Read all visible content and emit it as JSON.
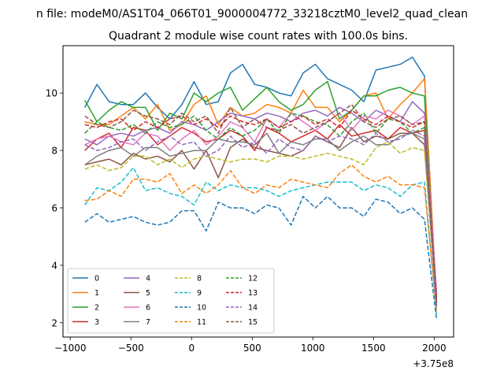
{
  "chart_data": {
    "type": "line",
    "suptitle": "n file: modeM0/AS1T04_066T01_9000004772_33218cztM0_level2_quad_clean",
    "title": "Quadrant 2 module wise count rates with 100.0s bins.",
    "xlabel": "",
    "ylabel": "",
    "x_offset_label": "+3.75e8",
    "xlim": [
      -1060,
      2160
    ],
    "ylim": [
      1.5,
      11.65
    ],
    "x_ticks": [
      -1000,
      -500,
      0,
      500,
      1000,
      1500,
      2000
    ],
    "x_tick_labels": [
      "−1000",
      "−500",
      "0",
      "500",
      "1000",
      "1500",
      "2000"
    ],
    "y_ticks": [
      2,
      4,
      6,
      8,
      10
    ],
    "y_tick_labels": [
      "2",
      "4",
      "6",
      "8",
      "10"
    ],
    "grid": false,
    "legend_position": "lower-left",
    "x": [
      -880,
      -780,
      -680,
      -580,
      -480,
      -380,
      -280,
      -180,
      -80,
      20,
      120,
      220,
      320,
      420,
      520,
      620,
      720,
      820,
      920,
      1020,
      1120,
      1220,
      1320,
      1420,
      1520,
      1620,
      1720,
      1820,
      1920,
      2020
    ],
    "series": [
      {
        "name": "0",
        "color": "#1f77b4",
        "dash": "solid",
        "values": [
          9.5,
          10.3,
          9.7,
          9.6,
          9.6,
          10.0,
          9.5,
          9.1,
          9.6,
          10.4,
          9.6,
          9.7,
          10.7,
          11.0,
          10.3,
          10.2,
          10.0,
          9.9,
          10.7,
          11.0,
          10.5,
          10.3,
          10.1,
          9.7,
          10.8,
          10.9,
          11.0,
          11.25,
          10.6,
          2.6
        ]
      },
      {
        "name": "1",
        "color": "#ff7f0e",
        "dash": "solid",
        "values": [
          9.0,
          8.9,
          8.9,
          9.2,
          9.5,
          9.1,
          9.6,
          8.7,
          8.9,
          9.6,
          9.9,
          8.9,
          9.5,
          9.2,
          9.3,
          9.6,
          9.5,
          9.3,
          10.1,
          9.5,
          9.5,
          9.0,
          9.4,
          9.9,
          10.0,
          9.1,
          9.6,
          10.0,
          10.5,
          2.8
        ]
      },
      {
        "name": "2",
        "color": "#2ca02c",
        "dash": "solid",
        "values": [
          9.75,
          9.0,
          9.4,
          9.7,
          9.5,
          9.5,
          8.7,
          9.3,
          9.1,
          10.0,
          9.7,
          10.0,
          10.2,
          9.4,
          9.8,
          10.2,
          9.7,
          9.4,
          9.6,
          10.1,
          10.4,
          9.1,
          9.4,
          9.9,
          9.9,
          10.1,
          10.2,
          10.0,
          9.9,
          2.7
        ]
      },
      {
        "name": "3",
        "color": "#d62728",
        "dash": "solid",
        "values": [
          8.0,
          8.4,
          8.6,
          8.1,
          8.8,
          8.7,
          8.2,
          8.5,
          8.8,
          8.6,
          8.3,
          8.4,
          8.7,
          8.5,
          8.0,
          8.8,
          8.6,
          8.3,
          8.5,
          8.7,
          8.4,
          8.9,
          8.5,
          8.6,
          8.7,
          8.4,
          8.8,
          8.6,
          8.7,
          2.9
        ]
      },
      {
        "name": "4",
        "color": "#9467bd",
        "dash": "solid",
        "values": [
          8.4,
          8.2,
          8.5,
          8.6,
          8.5,
          8.7,
          8.8,
          8.6,
          9.0,
          8.9,
          8.7,
          9.0,
          9.3,
          9.2,
          9.1,
          9.3,
          9.2,
          9.0,
          9.3,
          9.4,
          9.2,
          9.5,
          9.3,
          9.0,
          9.4,
          9.2,
          9.0,
          9.7,
          9.3,
          3.0
        ]
      },
      {
        "name": "5",
        "color": "#8c564b",
        "dash": "solid",
        "values": [
          7.5,
          7.6,
          7.7,
          7.5,
          7.9,
          7.7,
          7.8,
          7.6,
          8.0,
          7.35,
          8.0,
          7.05,
          8.1,
          8.4,
          8.1,
          8.0,
          7.9,
          7.8,
          8.0,
          8.5,
          8.3,
          8.1,
          8.8,
          8.3,
          8.5,
          8.4,
          8.6,
          8.6,
          8.2,
          2.7
        ]
      },
      {
        "name": "6",
        "color": "#e377c2",
        "dash": "solid",
        "values": [
          8.2,
          8.4,
          8.5,
          8.3,
          8.2,
          8.6,
          8.5,
          8.0,
          8.4,
          8.7,
          8.2,
          8.5,
          9.0,
          8.8,
          8.3,
          9.1,
          8.8,
          9.3,
          9.0,
          8.7,
          9.0,
          9.3,
          8.7,
          9.2,
          9.1,
          9.4,
          9.2,
          8.9,
          9.2,
          3.1
        ]
      },
      {
        "name": "7",
        "color": "#7f7f7f",
        "dash": "solid",
        "values": [
          7.5,
          7.8,
          8.0,
          8.1,
          7.8,
          8.1,
          8.1,
          7.8,
          7.9,
          8.0,
          8.0,
          8.4,
          8.3,
          8.3,
          8.2,
          8.6,
          7.9,
          8.3,
          8.2,
          8.4,
          8.4,
          8.0,
          8.3,
          8.5,
          8.2,
          8.2,
          8.5,
          8.6,
          8.4,
          2.6
        ]
      },
      {
        "name": "8",
        "color": "#bcbd22",
        "dash": "dash",
        "values": [
          7.35,
          7.5,
          7.3,
          7.4,
          7.8,
          7.8,
          7.5,
          7.7,
          7.4,
          7.7,
          7.8,
          7.7,
          7.6,
          7.7,
          7.7,
          7.6,
          7.8,
          7.8,
          7.7,
          7.8,
          7.9,
          7.8,
          7.7,
          7.5,
          8.1,
          8.3,
          7.9,
          8.1,
          8.0,
          2.5
        ]
      },
      {
        "name": "9",
        "color": "#17becf",
        "dash": "dash",
        "values": [
          6.1,
          6.7,
          6.6,
          6.9,
          7.4,
          6.6,
          6.7,
          6.5,
          6.4,
          6.1,
          6.9,
          6.6,
          6.8,
          6.7,
          6.7,
          6.6,
          6.4,
          6.6,
          6.7,
          6.8,
          6.9,
          6.9,
          6.9,
          6.6,
          6.8,
          6.7,
          6.4,
          6.8,
          6.9,
          2.3
        ]
      },
      {
        "name": "10",
        "color": "#1f77b4",
        "dash": "dash",
        "values": [
          5.5,
          5.8,
          5.5,
          5.6,
          5.7,
          5.5,
          5.4,
          5.5,
          5.9,
          5.9,
          5.2,
          6.2,
          6.0,
          6.0,
          5.8,
          6.1,
          6.0,
          5.4,
          6.4,
          6.0,
          6.4,
          6.0,
          6.0,
          5.7,
          6.3,
          6.2,
          5.8,
          6.0,
          5.6,
          2.1
        ]
      },
      {
        "name": "11",
        "color": "#ff7f0e",
        "dash": "dash",
        "values": [
          6.25,
          6.3,
          6.6,
          6.4,
          7.0,
          7.0,
          6.9,
          7.2,
          6.5,
          6.8,
          6.5,
          6.8,
          7.3,
          6.7,
          6.5,
          6.8,
          6.7,
          7.0,
          6.9,
          6.8,
          6.7,
          7.2,
          7.5,
          7.1,
          6.9,
          7.1,
          6.8,
          6.8,
          6.7,
          2.4
        ]
      },
      {
        "name": "12",
        "color": "#2ca02c",
        "dash": "dash",
        "values": [
          8.6,
          9.0,
          8.8,
          8.7,
          8.9,
          8.6,
          9.0,
          8.8,
          8.9,
          9.2,
          8.7,
          8.4,
          8.8,
          8.5,
          8.7,
          9.1,
          8.6,
          9.3,
          9.2,
          9.0,
          8.9,
          8.5,
          9.0,
          9.3,
          8.6,
          9.1,
          9.0,
          8.6,
          8.8,
          2.6
        ]
      },
      {
        "name": "13",
        "color": "#d62728",
        "dash": "dash",
        "values": [
          8.9,
          8.8,
          9.0,
          9.1,
          8.7,
          9.0,
          8.8,
          9.1,
          9.2,
          8.9,
          9.1,
          8.8,
          9.2,
          9.0,
          8.9,
          9.1,
          8.8,
          9.0,
          9.2,
          8.9,
          9.1,
          8.8,
          9.4,
          9.1,
          8.9,
          9.2,
          9.0,
          8.8,
          9.0,
          2.8
        ]
      },
      {
        "name": "14",
        "color": "#9467bd",
        "dash": "dash",
        "values": [
          8.2,
          8.0,
          8.1,
          8.3,
          8.4,
          8.0,
          8.3,
          8.5,
          8.2,
          8.3,
          7.8,
          8.0,
          8.5,
          8.1,
          8.3,
          7.9,
          8.4,
          8.1,
          8.0,
          8.5,
          8.3,
          8.5,
          8.4,
          8.2,
          8.6,
          8.3,
          8.4,
          8.7,
          8.5,
          2.5
        ]
      },
      {
        "name": "15",
        "color": "#8c564b",
        "dash": "dash",
        "values": [
          9.2,
          8.9,
          8.8,
          9.0,
          9.4,
          9.2,
          9.1,
          8.9,
          9.3,
          9.0,
          9.2,
          8.6,
          9.5,
          8.8,
          9.1,
          8.8,
          8.7,
          8.9,
          8.6,
          8.8,
          9.0,
          9.3,
          9.6,
          9.0,
          8.8,
          9.1,
          9.2,
          8.9,
          9.0,
          2.7
        ]
      }
    ]
  }
}
